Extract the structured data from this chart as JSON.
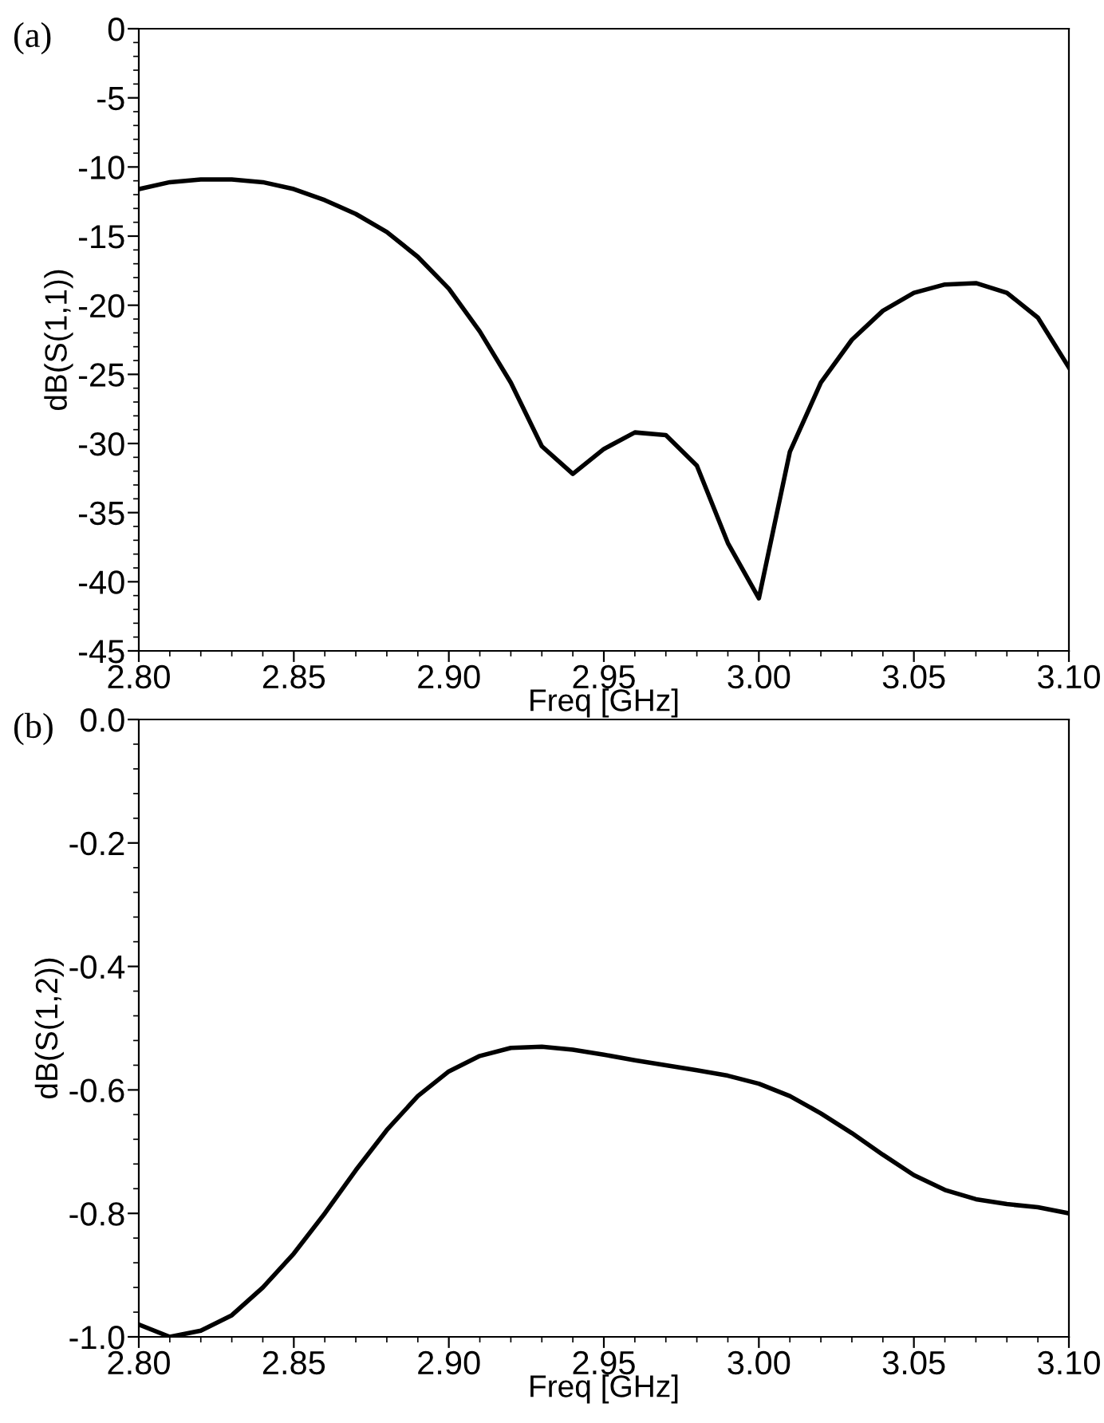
{
  "chart_data": [
    {
      "type": "line",
      "xlabel": "Freq [GHz]",
      "ylabel": "dB(S(1,1))",
      "annotations": [
        "(a)"
      ],
      "x": [
        2.8,
        2.81,
        2.82,
        2.83,
        2.84,
        2.85,
        2.86,
        2.87,
        2.88,
        2.89,
        2.9,
        2.91,
        2.92,
        2.93,
        2.94,
        2.95,
        2.96,
        2.97,
        2.98,
        2.99,
        3.0,
        3.01,
        3.02,
        3.03,
        3.04,
        3.05,
        3.06,
        3.07,
        3.08,
        3.09,
        3.1
      ],
      "series": [
        {
          "color": "#000000",
          "values": [
            -11.6,
            -11.1,
            -10.9,
            -10.9,
            -11.1,
            -11.6,
            -12.4,
            -13.4,
            -14.7,
            -16.5,
            -18.8,
            -21.9,
            -25.6,
            -30.2,
            -32.2,
            -30.4,
            -29.2,
            -29.4,
            -31.6,
            -37.2,
            -41.2,
            -30.6,
            -25.6,
            -22.5,
            -20.4,
            -19.1,
            -18.5,
            -18.4,
            -19.1,
            -20.9,
            -24.5
          ]
        }
      ],
      "xlim": [
        2.8,
        3.1
      ],
      "ylim": [
        -45,
        0
      ],
      "xticks": [
        {
          "value": 2.8,
          "label": "2.80"
        },
        {
          "value": 2.85,
          "label": "2.85"
        },
        {
          "value": 2.9,
          "label": "2.90"
        },
        {
          "value": 2.95,
          "label": "2.95"
        },
        {
          "value": 3.0,
          "label": "3.00"
        },
        {
          "value": 3.05,
          "label": "3.05"
        },
        {
          "value": 3.1,
          "label": "3.10"
        }
      ],
      "yticks": [
        -45,
        -40,
        -35,
        -30,
        -25,
        -20,
        -15,
        -10,
        -5,
        0
      ],
      "grid": false,
      "legend": false,
      "marker": "none",
      "line_style": "solid"
    },
    {
      "type": "line",
      "xlabel": "Freq [GHz]",
      "ylabel": "dB(S(1,2))",
      "annotations": [
        "(b)"
      ],
      "x": [
        2.8,
        2.81,
        2.82,
        2.83,
        2.84,
        2.85,
        2.86,
        2.87,
        2.88,
        2.89,
        2.9,
        2.91,
        2.92,
        2.93,
        2.94,
        2.95,
        2.96,
        2.97,
        2.98,
        2.99,
        3.0,
        3.01,
        3.02,
        3.03,
        3.04,
        3.05,
        3.06,
        3.07,
        3.08,
        3.09,
        3.1
      ],
      "series": [
        {
          "color": "#000000",
          "values": [
            -0.98,
            -1.0,
            -0.99,
            -0.965,
            -0.92,
            -0.865,
            -0.8,
            -0.73,
            -0.665,
            -0.61,
            -0.57,
            -0.545,
            -0.532,
            -0.53,
            -0.535,
            -0.543,
            -0.552,
            -0.56,
            -0.568,
            -0.577,
            -0.59,
            -0.61,
            -0.638,
            -0.67,
            -0.705,
            -0.738,
            -0.762,
            -0.777,
            -0.785,
            -0.79,
            -0.8
          ]
        }
      ],
      "xlim": [
        2.8,
        3.1
      ],
      "ylim": [
        -1.0,
        0.0
      ],
      "xticks": [
        {
          "value": 2.8,
          "label": "2.80"
        },
        {
          "value": 2.85,
          "label": "2.85"
        },
        {
          "value": 2.9,
          "label": "2.90"
        },
        {
          "value": 2.95,
          "label": "2.95"
        },
        {
          "value": 3.0,
          "label": "3.00"
        },
        {
          "value": 3.05,
          "label": "3.05"
        },
        {
          "value": 3.1,
          "label": "3.10"
        }
      ],
      "yticks": [
        {
          "value": -1.0,
          "label": "-1.0"
        },
        -0.8,
        -0.6,
        -0.4,
        -0.2,
        {
          "value": 0.0,
          "label": "0.0"
        }
      ],
      "grid": false,
      "legend": false,
      "marker": "none",
      "line_style": "solid"
    }
  ]
}
